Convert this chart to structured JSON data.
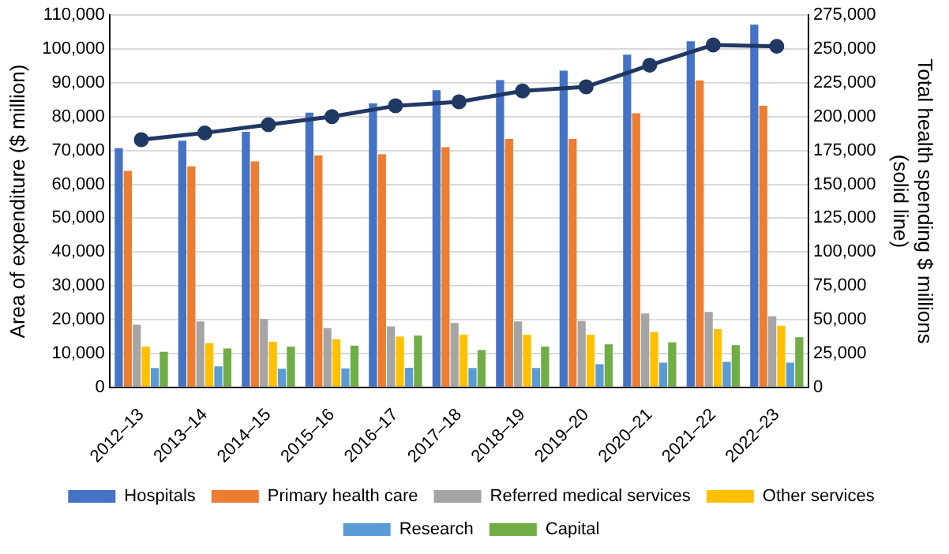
{
  "chart_data": {
    "type": "bar",
    "ylabel": "Area of expenditure ($ million)",
    "y2label": "Total health spending $ millions\n(solid line)",
    "categories": [
      "2012–13",
      "2013–14",
      "2014–15",
      "2015–16",
      "2016–17",
      "2017–18",
      "2018–19",
      "2019–20",
      "2020–21",
      "2021–22",
      "2022–23"
    ],
    "series": [
      {
        "name": "Hospitals",
        "color": "#4472c4",
        "values": [
          70700,
          72900,
          75500,
          81200,
          83900,
          87800,
          90800,
          93600,
          98300,
          102300,
          107200
        ]
      },
      {
        "name": "Primary health care",
        "color": "#ed7d31",
        "values": [
          64000,
          65300,
          66800,
          68500,
          68900,
          71000,
          73400,
          73400,
          81000,
          90700,
          83200
        ]
      },
      {
        "name": "Referred medical services",
        "color": "#a5a5a5",
        "values": [
          18500,
          19500,
          20200,
          17500,
          18000,
          19000,
          19500,
          19600,
          21800,
          22300,
          21000
        ]
      },
      {
        "name": "Other services",
        "color": "#ffc000",
        "values": [
          12000,
          13000,
          13500,
          14200,
          15000,
          15500,
          15500,
          15500,
          16300,
          17200,
          18200
        ]
      },
      {
        "name": "Research",
        "color": "#5b9bd5",
        "values": [
          5700,
          6200,
          5500,
          5600,
          5800,
          5700,
          5700,
          6800,
          7300,
          7500,
          7300
        ]
      },
      {
        "name": "Capital",
        "color": "#70ad47",
        "values": [
          10500,
          11500,
          12000,
          12300,
          15300,
          11000,
          12000,
          12700,
          13300,
          12500,
          14800
        ]
      },
      {
        "type": "line",
        "axis": "y2",
        "color": "#203864",
        "values": [
          183000,
          188000,
          194000,
          200000,
          208000,
          211000,
          219000,
          222000,
          238000,
          253000,
          252000
        ]
      }
    ],
    "ylim": [
      0,
      110000
    ],
    "yticks": [
      0,
      {
        "value": 10000,
        "label": "10,000"
      },
      {
        "value": 20000,
        "label": "20,000"
      },
      {
        "value": 30000,
        "label": "30,000"
      },
      {
        "value": 40000,
        "label": "40,000"
      },
      {
        "value": 50000,
        "label": "50,000"
      },
      {
        "value": 60000,
        "label": "60,000"
      },
      {
        "value": 70000,
        "label": "70,000"
      },
      {
        "value": 80000,
        "label": "80,000"
      },
      {
        "value": 90000,
        "label": "90,000"
      },
      {
        "value": 100000,
        "label": "100,000"
      },
      {
        "value": 110000,
        "label": "110,000"
      }
    ],
    "y2lim": [
      0,
      275000
    ],
    "y2ticks": [
      0,
      {
        "value": 25000,
        "label": "25,000"
      },
      {
        "value": 50000,
        "label": "50,000"
      },
      {
        "value": 75000,
        "label": "75,000"
      },
      {
        "value": 100000,
        "label": "100,000"
      },
      {
        "value": 125000,
        "label": "125,000"
      },
      {
        "value": 150000,
        "label": "150,000"
      },
      {
        "value": 175000,
        "label": "175,000"
      },
      {
        "value": 200000,
        "label": "200,000"
      },
      {
        "value": 225000,
        "label": "225,000"
      },
      {
        "value": 250000,
        "label": "250,000"
      },
      {
        "value": 275000,
        "label": "275,000"
      }
    ],
    "grid": "y",
    "legend": "bottom",
    "marker": "circle"
  }
}
